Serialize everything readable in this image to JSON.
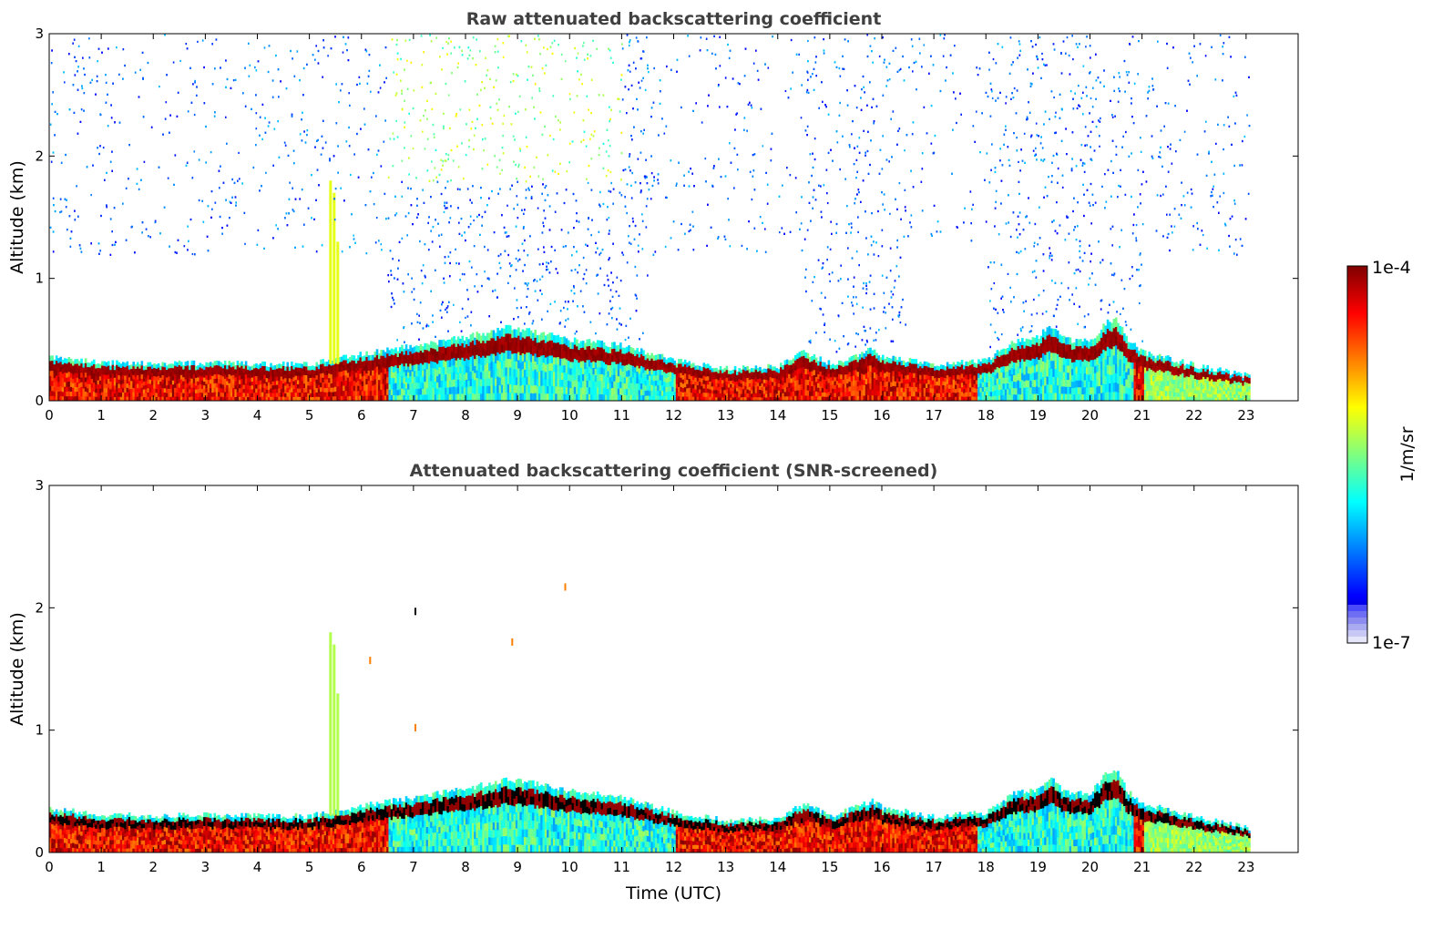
{
  "colors": {
    "jet_stops": [
      "#00007f",
      "#0000ff",
      "#007fff",
      "#00ffff",
      "#7fff7f",
      "#ffff00",
      "#ff7f00",
      "#ff0000",
      "#7f0000"
    ],
    "lowend_light": "#e6e6fa",
    "overlay_dark": "#000000"
  },
  "colorbar": {
    "label": "1/m/sr",
    "top_label": "1e-4",
    "bottom_label": "1e-7",
    "scale": "log",
    "range": [
      1e-07,
      0.0001
    ]
  },
  "chart_data": [
    {
      "type": "heatmap",
      "title": "Raw attenuated backscattering coefficient",
      "xlabel": "",
      "ylabel": "Altitude (km)",
      "xlim": [
        0,
        24
      ],
      "ylim": [
        0,
        3
      ],
      "xticks": [
        "0",
        "1",
        "2",
        "3",
        "4",
        "5",
        "6",
        "7",
        "8",
        "9",
        "10",
        "11",
        "12",
        "13",
        "14",
        "15",
        "16",
        "17",
        "18",
        "19",
        "20",
        "21",
        "22",
        "23"
      ],
      "yticks": [
        "0",
        "1",
        "2",
        "3"
      ],
      "data_end_hour": 23.05,
      "noise_above_layer": true,
      "boundary_layer_top_km": {
        "hours": [
          0,
          1,
          2,
          3,
          4,
          5,
          5.4,
          6,
          7,
          8,
          8.8,
          9.5,
          10,
          11,
          12,
          13,
          14,
          14.5,
          15,
          15.8,
          16,
          17,
          18,
          18.5,
          19,
          19.2,
          19.5,
          20,
          20.3,
          20.5,
          20.7,
          21,
          22,
          23.05
        ],
        "top_km": [
          0.36,
          0.31,
          0.3,
          0.31,
          0.3,
          0.3,
          0.33,
          0.38,
          0.45,
          0.52,
          0.6,
          0.55,
          0.5,
          0.45,
          0.33,
          0.26,
          0.28,
          0.4,
          0.3,
          0.42,
          0.37,
          0.29,
          0.33,
          0.48,
          0.52,
          0.62,
          0.5,
          0.48,
          0.65,
          0.67,
          0.5,
          0.4,
          0.29,
          0.2
        ]
      }
    },
    {
      "type": "heatmap",
      "title": "Attenuated backscattering coefficient (SNR-screened)",
      "xlabel": "Time (UTC)",
      "ylabel": "Altitude (km)",
      "xlim": [
        0,
        24
      ],
      "ylim": [
        0,
        3
      ],
      "xticks": [
        "0",
        "1",
        "2",
        "3",
        "4",
        "5",
        "6",
        "7",
        "8",
        "9",
        "10",
        "11",
        "12",
        "13",
        "14",
        "15",
        "16",
        "17",
        "18",
        "19",
        "20",
        "21",
        "22",
        "23"
      ],
      "yticks": [
        "0",
        "1",
        "2",
        "3"
      ],
      "data_end_hour": 23.05,
      "noise_above_layer": false
    }
  ]
}
